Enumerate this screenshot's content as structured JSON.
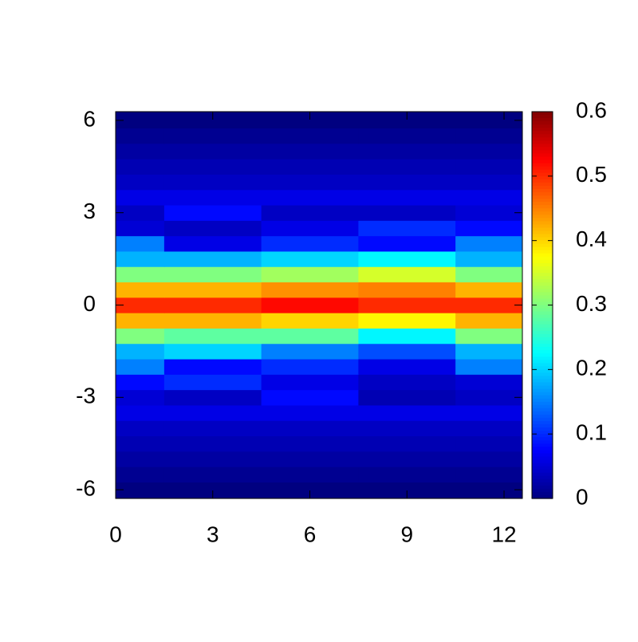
{
  "chart_data": {
    "type": "heatmap",
    "x": [
      0,
      3,
      6,
      9,
      12
    ],
    "y": [
      -6,
      -5.5,
      -5,
      -4.5,
      -4,
      -3.5,
      -3,
      -2.5,
      -2,
      -1.5,
      -1,
      -0.5,
      0,
      0.5,
      1,
      1.5,
      2,
      2.5,
      3,
      3.5,
      4,
      4.5,
      5,
      5.5,
      6
    ],
    "z": [
      [
        0,
        0,
        0,
        0,
        0
      ],
      [
        0.01,
        0.01,
        0.01,
        0.01,
        0.01
      ],
      [
        0.02,
        0.02,
        0.02,
        0.02,
        0.02
      ],
      [
        0.03,
        0.03,
        0.03,
        0.03,
        0.03
      ],
      [
        0.04,
        0.04,
        0.04,
        0.04,
        0.04
      ],
      [
        0.06,
        0.06,
        0.06,
        0.06,
        0.06
      ],
      [
        0.05,
        0.04,
        0.08,
        0.03,
        0.04
      ],
      [
        0.08,
        0.1,
        0.06,
        0.04,
        0.05
      ],
      [
        0.15,
        0.08,
        0.1,
        0.06,
        0.15
      ],
      [
        0.18,
        0.2,
        0.15,
        0.12,
        0.18
      ],
      [
        0.3,
        0.28,
        0.28,
        0.22,
        0.3
      ],
      [
        0.42,
        0.42,
        0.4,
        0.38,
        0.42
      ],
      [
        0.5,
        0.5,
        0.52,
        0.5,
        0.5
      ],
      [
        0.42,
        0.42,
        0.44,
        0.45,
        0.42
      ],
      [
        0.3,
        0.3,
        0.32,
        0.35,
        0.3
      ],
      [
        0.18,
        0.18,
        0.2,
        0.22,
        0.18
      ],
      [
        0.15,
        0.06,
        0.1,
        0.08,
        0.15
      ],
      [
        0.05,
        0.04,
        0.06,
        0.1,
        0.08
      ],
      [
        0.04,
        0.08,
        0.04,
        0.04,
        0.05
      ],
      [
        0.06,
        0.06,
        0.06,
        0.06,
        0.06
      ],
      [
        0.04,
        0.04,
        0.04,
        0.04,
        0.04
      ],
      [
        0.03,
        0.03,
        0.03,
        0.03,
        0.03
      ],
      [
        0.02,
        0.02,
        0.02,
        0.02,
        0.02
      ],
      [
        0.01,
        0.01,
        0.01,
        0.01,
        0.01
      ],
      [
        0,
        0,
        0,
        0,
        0
      ]
    ],
    "xlim": [
      0,
      12.566
    ],
    "ylim": [
      -6.283,
      6.283
    ],
    "xticks": [
      0,
      3,
      6,
      9,
      12
    ],
    "yticks": [
      -6,
      -3,
      0,
      3,
      6
    ],
    "zlim": [
      0,
      0.6
    ],
    "zticks": [
      0,
      0.1,
      0.2,
      0.3,
      0.4,
      0.5,
      0.6
    ],
    "colormap": "jet"
  }
}
